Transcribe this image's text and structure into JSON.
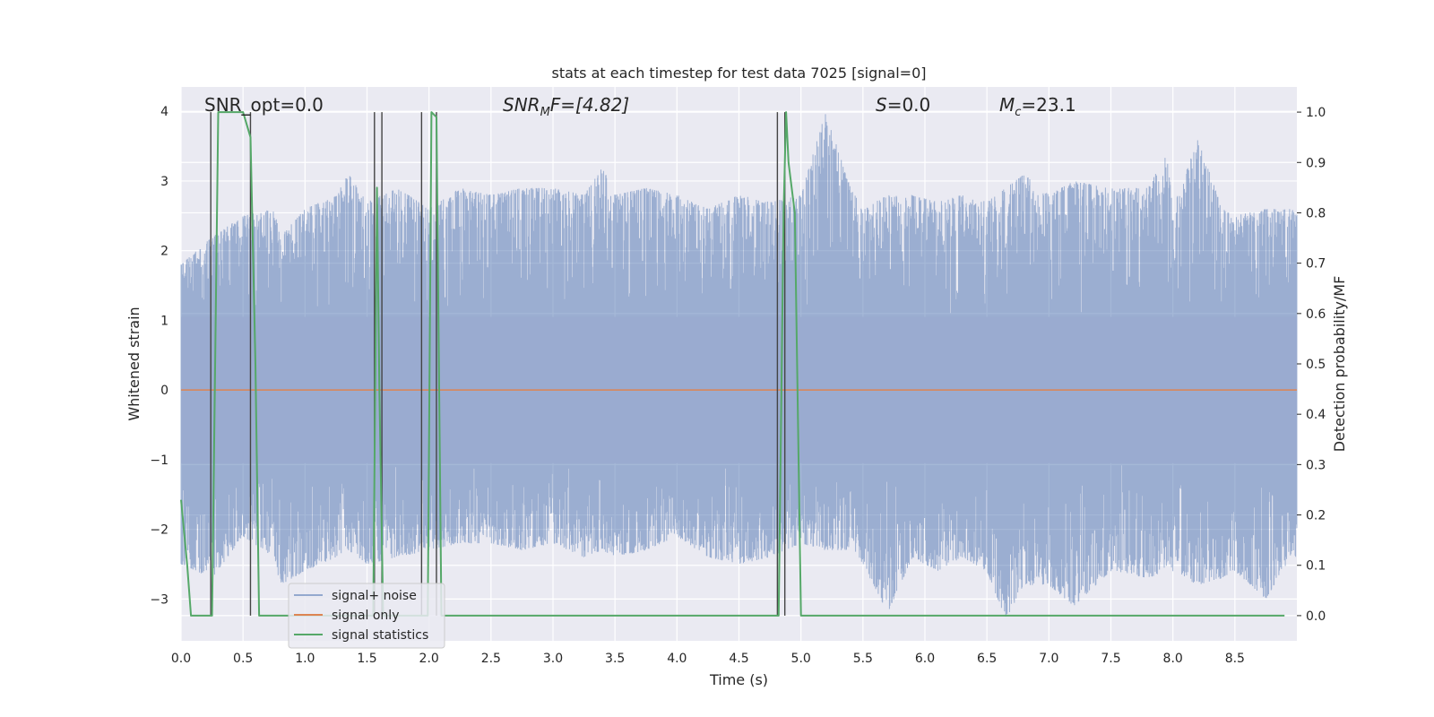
{
  "chart_data": {
    "type": "line",
    "title": "stats at each timestep for test data 7025 [signal=0]",
    "xlabel": "Time (s)",
    "ylabel": "Whitened strain",
    "y2label": "Detection probability/MF",
    "xlim": [
      0.0,
      9.0
    ],
    "ylim": [
      -3.6,
      4.35
    ],
    "y2lim": [
      -0.05,
      1.05
    ],
    "x_ticks": [
      "0.0",
      "0.5",
      "1.0",
      "1.5",
      "2.0",
      "2.5",
      "3.0",
      "3.5",
      "4.0",
      "4.5",
      "5.0",
      "5.5",
      "6.0",
      "6.5",
      "7.0",
      "7.5",
      "8.0",
      "8.5"
    ],
    "y_ticks": [
      "4",
      "3",
      "2",
      "1",
      "0",
      "−1",
      "−2",
      "−3"
    ],
    "y2_ticks": [
      "1.0",
      "0.9",
      "0.8",
      "0.7",
      "0.6",
      "0.5",
      "0.4",
      "0.3",
      "0.2",
      "0.1",
      "0.0"
    ],
    "grid": true,
    "legend_position": "lower-left",
    "legend": [
      "signal+ noise",
      "signal only",
      "signal statistics"
    ],
    "annotations": {
      "snr_opt": "SNR_opt=0.0",
      "snr_mf_base": "SNR",
      "snr_mf_sub": "M",
      "snr_mf_rest": "F=[4.82]",
      "s_label": "S",
      "s_value": "=0.0",
      "mc_base": "M",
      "mc_sub": "c",
      "mc_value": "=23.1"
    },
    "series": [
      {
        "name": "signal+ noise",
        "color": "#4c72b0",
        "axis": "left",
        "envelope": [
          [
            0.0,
            1.8,
            -2.5
          ],
          [
            0.25,
            2.2,
            -2.7
          ],
          [
            0.5,
            2.5,
            -2.1
          ],
          [
            0.75,
            2.6,
            -2.4
          ],
          [
            0.8,
            2.2,
            -2.8
          ],
          [
            1.0,
            2.6,
            -2.6
          ],
          [
            1.25,
            2.8,
            -2.4
          ],
          [
            1.35,
            3.1,
            -2.3
          ],
          [
            1.5,
            2.7,
            -2.5
          ],
          [
            1.75,
            2.9,
            -2.4
          ],
          [
            2.0,
            2.6,
            -2.3
          ],
          [
            2.25,
            2.9,
            -2.2
          ],
          [
            2.5,
            2.8,
            -2.2
          ],
          [
            2.75,
            2.9,
            -2.3
          ],
          [
            3.0,
            2.9,
            -2.2
          ],
          [
            3.25,
            2.8,
            -2.4
          ],
          [
            3.4,
            3.2,
            -2.3
          ],
          [
            3.5,
            2.8,
            -2.4
          ],
          [
            3.75,
            2.9,
            -2.3
          ],
          [
            4.0,
            2.8,
            -2.1
          ],
          [
            4.25,
            2.6,
            -2.4
          ],
          [
            4.5,
            2.8,
            -2.5
          ],
          [
            4.75,
            2.7,
            -2.4
          ],
          [
            5.0,
            2.8,
            -2.2
          ],
          [
            5.2,
            4.0,
            -2.3
          ],
          [
            5.4,
            2.9,
            -2.3
          ],
          [
            5.5,
            2.6,
            -2.5
          ],
          [
            5.7,
            2.8,
            -3.2
          ],
          [
            5.9,
            2.8,
            -2.4
          ],
          [
            6.1,
            2.7,
            -2.6
          ],
          [
            6.3,
            2.8,
            -2.4
          ],
          [
            6.5,
            2.7,
            -2.6
          ],
          [
            6.65,
            2.9,
            -3.3
          ],
          [
            6.8,
            3.1,
            -2.8
          ],
          [
            7.0,
            2.8,
            -2.8
          ],
          [
            7.2,
            3.0,
            -3.1
          ],
          [
            7.5,
            2.9,
            -2.6
          ],
          [
            7.8,
            2.9,
            -2.7
          ],
          [
            7.95,
            3.4,
            -2.6
          ],
          [
            8.0,
            2.6,
            -2.6
          ],
          [
            8.2,
            3.6,
            -2.8
          ],
          [
            8.4,
            2.6,
            -2.7
          ],
          [
            8.5,
            2.5,
            -2.6
          ],
          [
            8.75,
            2.6,
            -3.0
          ],
          [
            8.95,
            2.6,
            -2.4
          ]
        ]
      },
      {
        "name": "signal only",
        "color": "#dd8452",
        "axis": "left",
        "x": [
          0.0,
          9.0
        ],
        "y": [
          0.0,
          0.0
        ]
      },
      {
        "name": "signal statistics",
        "color": "#55a868",
        "axis": "right",
        "x": [
          0.0,
          0.05,
          0.08,
          0.15,
          0.2,
          0.25,
          0.3,
          0.35,
          0.45,
          0.5,
          0.56,
          0.6,
          0.63,
          0.75,
          1.0,
          1.5,
          1.55,
          1.58,
          1.6,
          1.63,
          1.67,
          1.7,
          1.75,
          1.8,
          1.9,
          1.95,
          1.99,
          2.02,
          2.06,
          2.1,
          2.16,
          2.2,
          2.5,
          3.0,
          3.5,
          4.0,
          4.5,
          4.75,
          4.82,
          4.86,
          4.88,
          4.9,
          4.95,
          5.0,
          5.05,
          5.5,
          6.0,
          7.0,
          8.0,
          8.9
        ],
        "y": [
          0.23,
          0.1,
          0.0,
          0.0,
          0.0,
          0.0,
          1.0,
          1.0,
          1.0,
          1.0,
          0.95,
          0.5,
          0.0,
          0.0,
          0.0,
          0.0,
          0.0,
          0.85,
          0.45,
          0.0,
          0.0,
          0.0,
          0.0,
          0.0,
          0.0,
          0.0,
          0.0,
          1.0,
          0.99,
          0.0,
          0.0,
          0.0,
          0.0,
          0.0,
          0.0,
          0.0,
          0.0,
          0.0,
          0.0,
          0.8,
          1.0,
          0.9,
          0.8,
          0.0,
          0.0,
          0.0,
          0.0,
          0.0,
          0.0,
          0.0
        ]
      }
    ],
    "vertical_markers": {
      "color": "#444444",
      "x": [
        0.24,
        0.56,
        1.56,
        1.62,
        1.94,
        2.06,
        4.81,
        4.87
      ]
    }
  }
}
